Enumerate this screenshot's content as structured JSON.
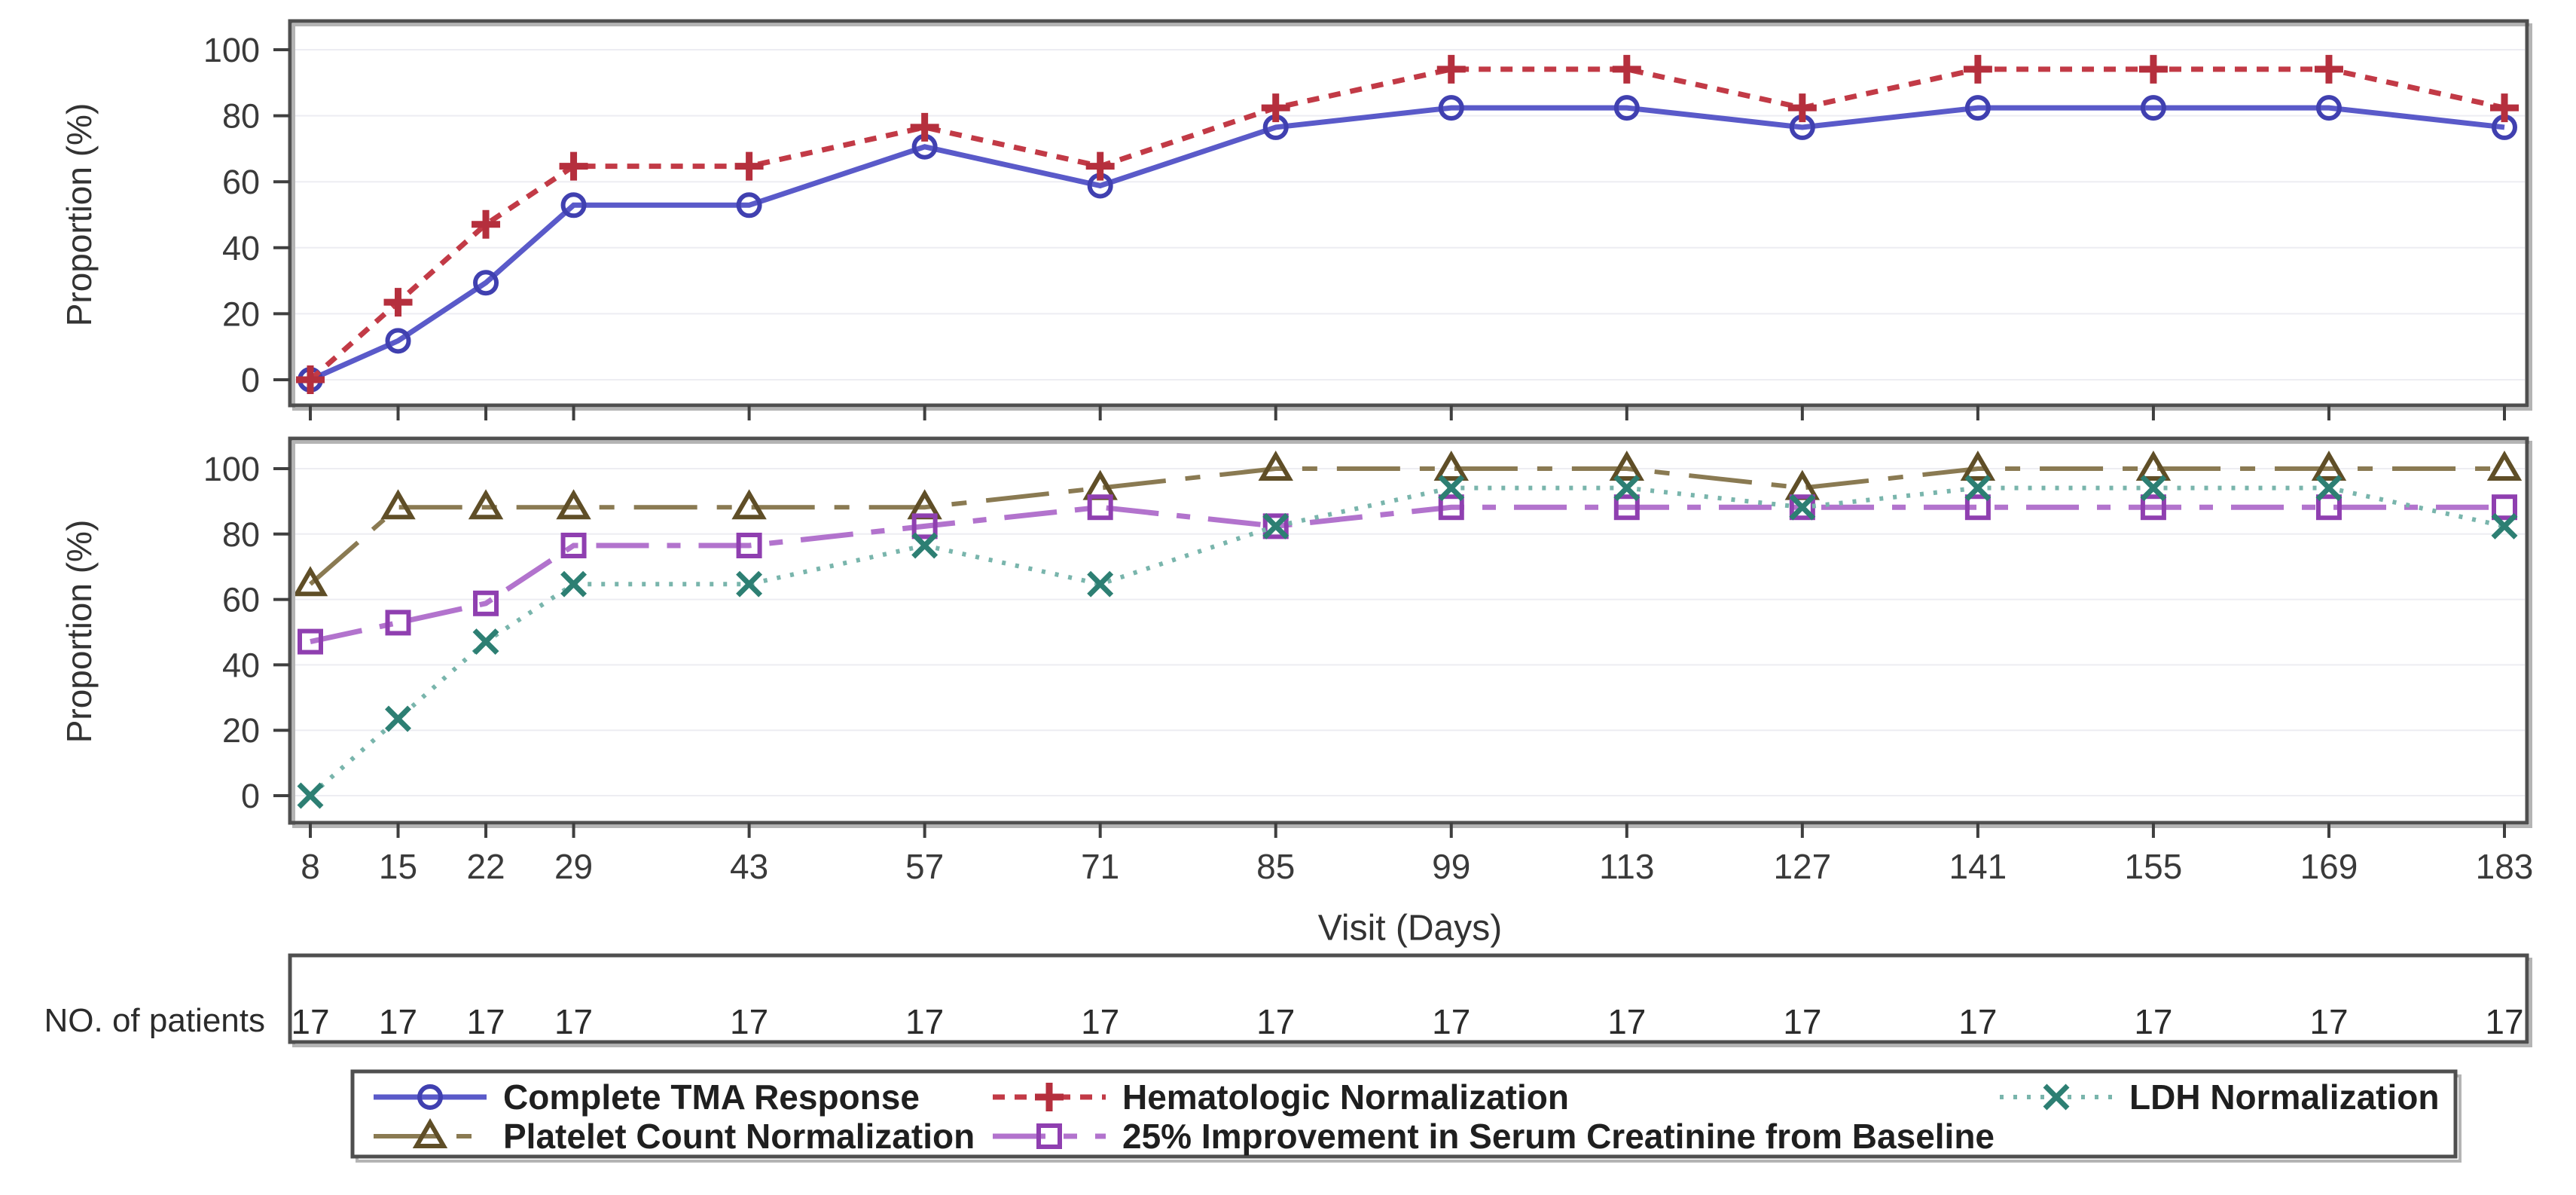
{
  "figure": {
    "ylabel": "Proportion (%)",
    "xlabel": "Visit (Days)",
    "background": "#ffffff",
    "panel_border_color": "#4f4f4f",
    "panel_shadow_color": "#b4b4b4",
    "grid_color": "#ededf2",
    "tick_color": "#3f3f3f",
    "tick_label_color": "#3a3a3a",
    "legend_text_color": "#1f1f1f"
  },
  "chart_data": {
    "type": "line",
    "title": "",
    "xlabel": "Visit (Days)",
    "ylabel": "Proportion (%)",
    "x_ticks": [
      8,
      15,
      22,
      29,
      43,
      57,
      71,
      85,
      99,
      113,
      127,
      141,
      155,
      169,
      183
    ],
    "y_ticks": [
      0,
      20,
      40,
      60,
      80,
      100
    ],
    "ylim": [
      0,
      100
    ],
    "grid": "horizontal-only",
    "legend_position": "bottom-box",
    "panels": [
      {
        "id": "top",
        "series_ids": [
          "tma",
          "hema"
        ]
      },
      {
        "id": "bottom",
        "series_ids": [
          "platelet",
          "creatinine",
          "ldh"
        ]
      }
    ],
    "series": [
      {
        "id": "tma",
        "label": "Complete TMA Response",
        "panel": "top",
        "color": "#5a5ac9",
        "marker": "circle",
        "marker_color": "#4040b0",
        "line_style": "solid",
        "values": [
          0,
          11.8,
          29.4,
          52.9,
          52.9,
          70.6,
          58.8,
          76.5,
          82.4,
          82.4,
          76.5,
          82.4,
          82.4,
          82.4,
          76.5
        ]
      },
      {
        "id": "hema",
        "label": "Hematologic Normalization",
        "panel": "top",
        "color": "#c23a46",
        "marker": "plus",
        "marker_color": "#b52f3d",
        "line_style": "short-dash",
        "values": [
          0,
          23.5,
          47.1,
          64.7,
          64.7,
          76.5,
          64.7,
          82.4,
          94.1,
          94.1,
          82.4,
          94.1,
          94.1,
          94.1,
          82.4
        ]
      },
      {
        "id": "platelet",
        "label": "Platelet Count Normalization",
        "panel": "bottom",
        "color": "#8a7a52",
        "marker": "triangle",
        "marker_color": "#5f4e27",
        "line_style": "long-dash-dot",
        "values": [
          64.7,
          88.2,
          88.2,
          88.2,
          88.2,
          88.2,
          94.1,
          100,
          100,
          100,
          94.1,
          100,
          100,
          100,
          100
        ]
      },
      {
        "id": "creatinine",
        "label": "25% Improvement in Serum Creatinine from Baseline",
        "panel": "bottom",
        "color": "#b273cd",
        "marker": "square",
        "marker_color": "#8f3fb0",
        "line_style": "dash-dot",
        "values": [
          47.1,
          52.9,
          58.8,
          76.5,
          76.5,
          82.4,
          88.2,
          82.4,
          88.2,
          88.2,
          88.2,
          88.2,
          88.2,
          88.2,
          88.2
        ]
      },
      {
        "id": "ldh",
        "label": "LDH Normalization",
        "panel": "bottom",
        "color": "#79b5ac",
        "marker": "x",
        "marker_color": "#2d7f73",
        "line_style": "dot",
        "values": [
          0,
          23.5,
          47.1,
          64.7,
          64.7,
          76.5,
          64.7,
          82.4,
          94.1,
          94.1,
          88.2,
          94.1,
          94.1,
          94.1,
          82.4
        ]
      }
    ],
    "legend_rows": [
      [
        "tma",
        "hema",
        "ldh"
      ],
      [
        "platelet",
        "creatinine"
      ]
    ]
  },
  "patients_row": {
    "label": "NO. of patients",
    "values": [
      "17",
      "17",
      "17",
      "17",
      "17",
      "17",
      "17",
      "17",
      "17",
      "17",
      "17",
      "17",
      "17",
      "17",
      "17"
    ]
  }
}
